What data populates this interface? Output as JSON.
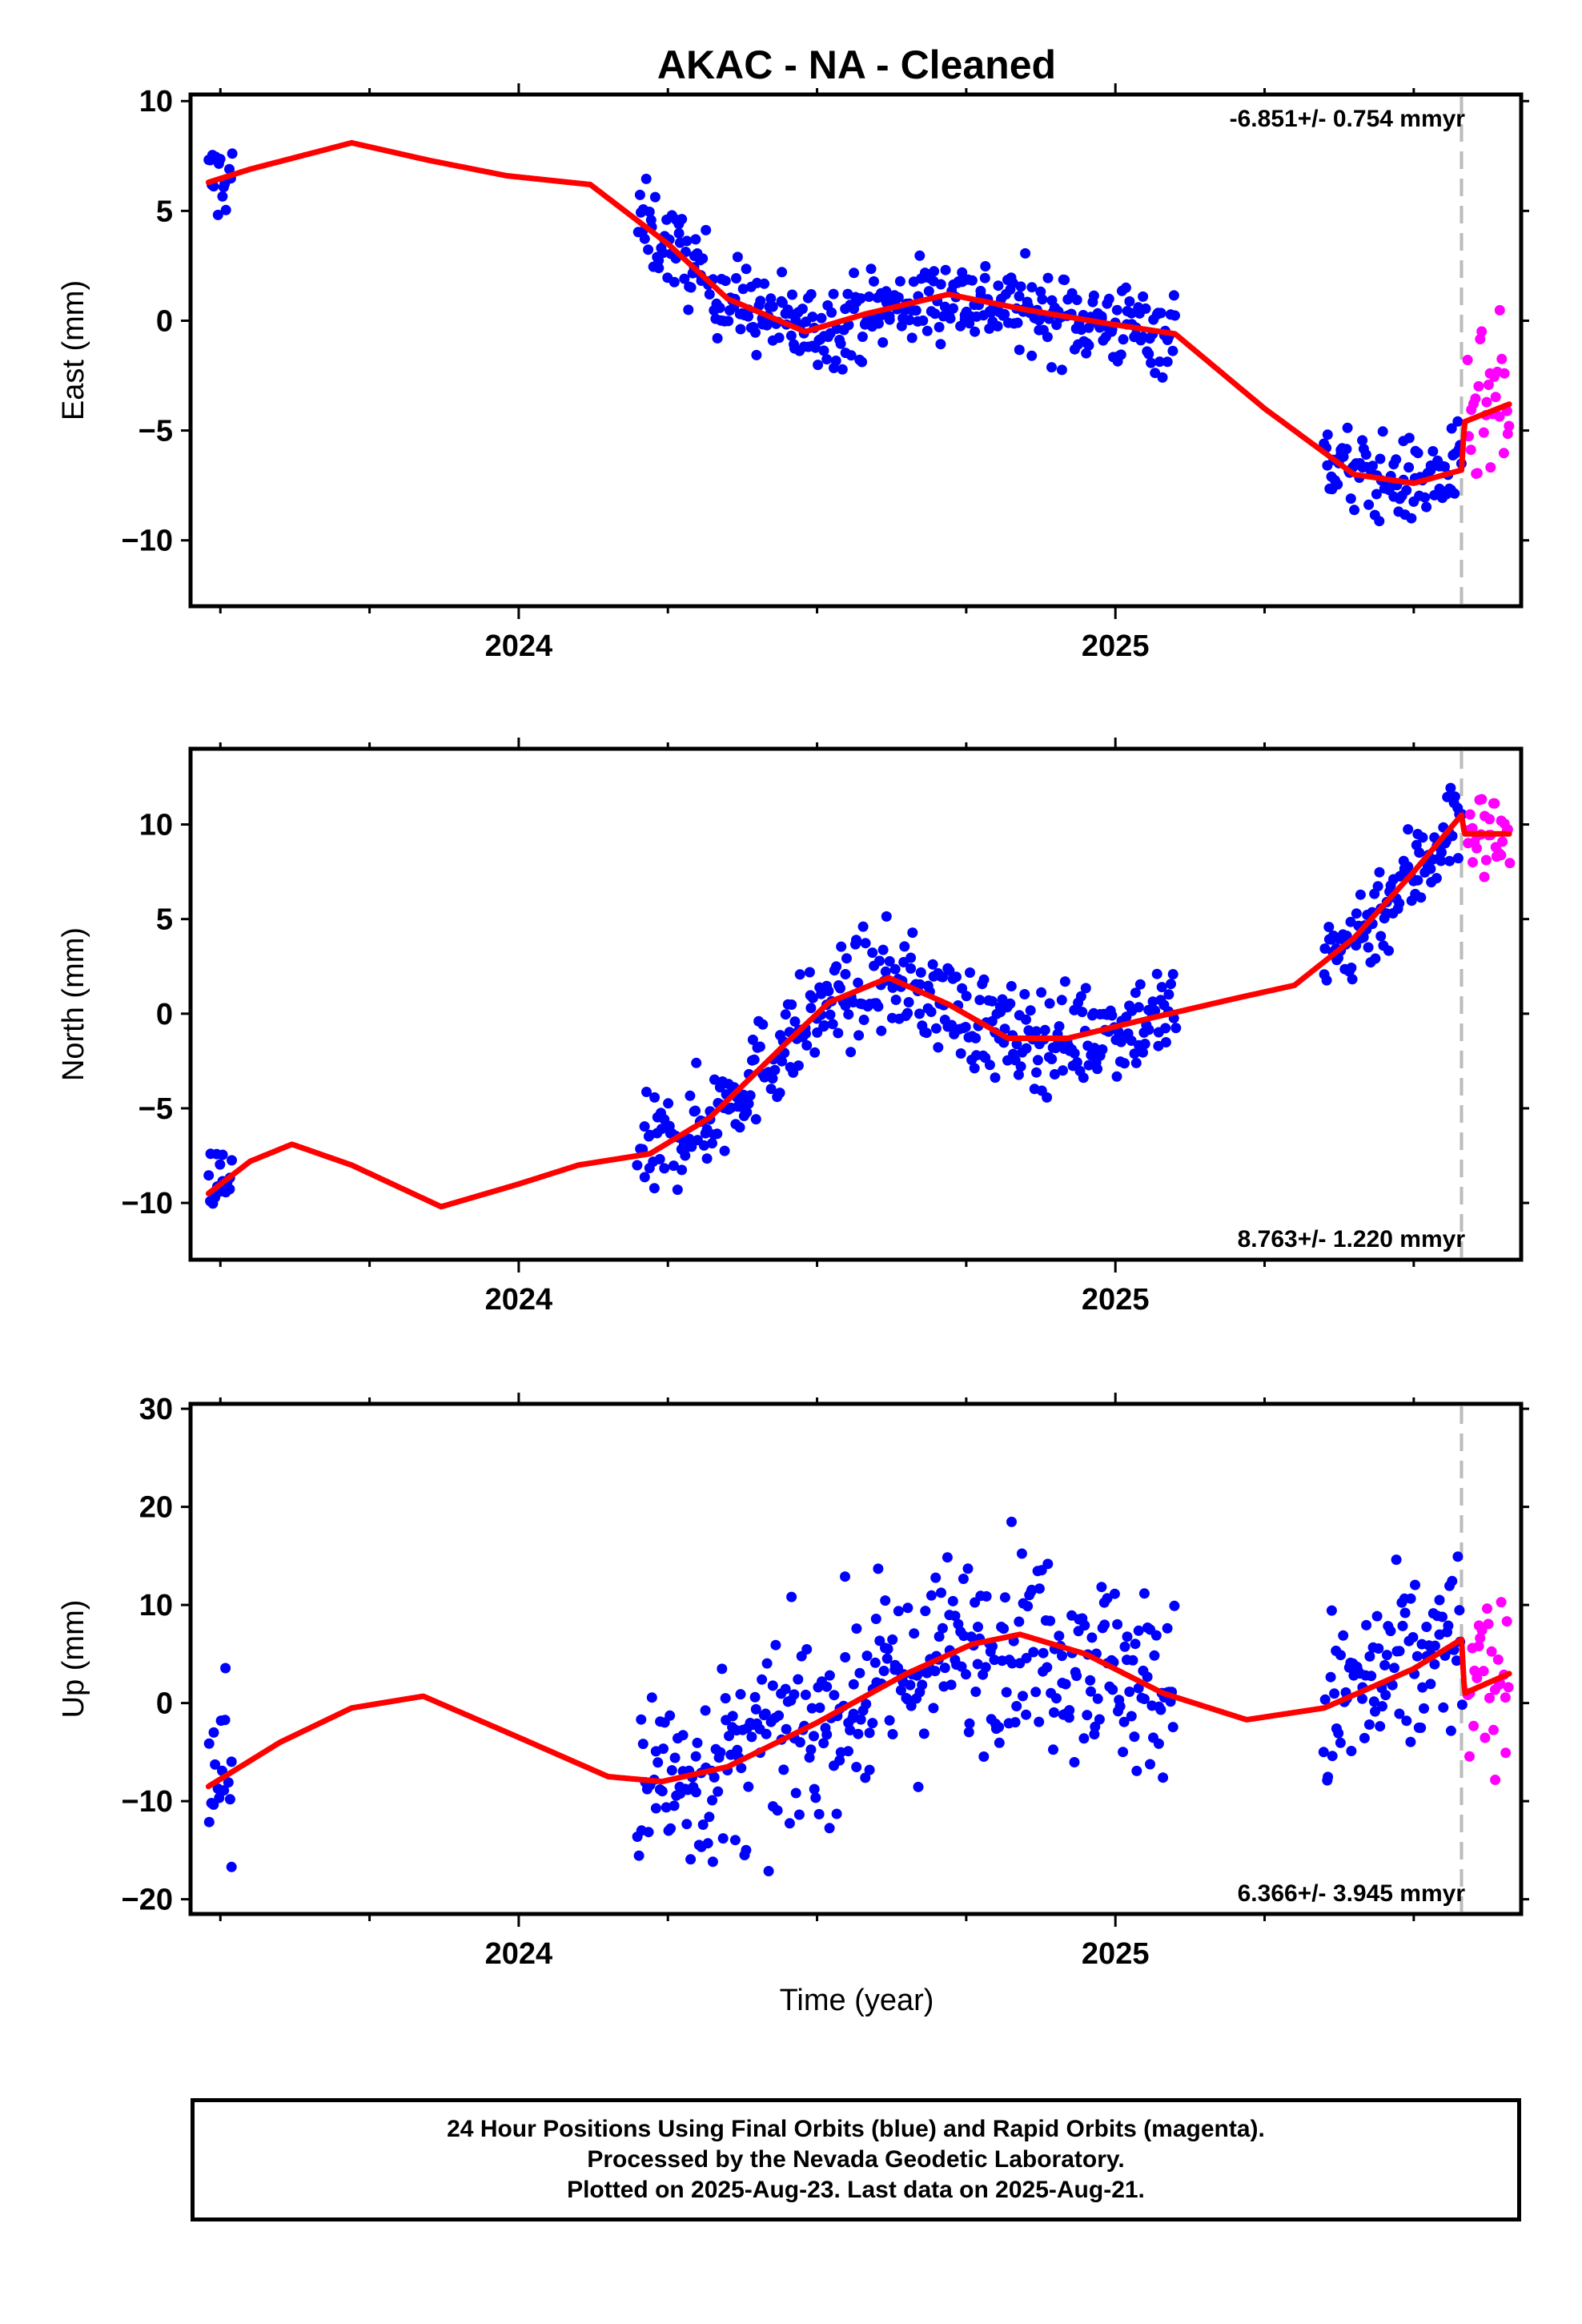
{
  "title": "AKAC  - NA - Cleaned",
  "colors": {
    "final": "#0000ff",
    "rapid": "#ff00ff",
    "model": "#ff0000",
    "marker_line": "#bbbbbb",
    "frame": "#000000"
  },
  "x_axis": {
    "label": "Time (year)",
    "range": [
      2023.45,
      2025.68
    ],
    "major_ticks": [
      2024,
      2025
    ],
    "major_tick_labels": [
      "2024",
      "2025"
    ],
    "minor_ticks": [
      2023.5,
      2023.75,
      2024.25,
      2024.5,
      2024.75,
      2025.25,
      2025.5
    ],
    "last_data_marker": 2025.58
  },
  "footer": {
    "line1": "24 Hour Positions Using Final Orbits (blue) and Rapid Orbits (magenta).",
    "line2": "Processed by the Nevada Geodetic Laboratory.",
    "line3": "Plotted on 2025-Aug-23. Last data on 2025-Aug-21."
  },
  "chart_data": [
    {
      "type": "scatter",
      "component": "East",
      "ylabel": "East (mm)",
      "ylim": [
        -13,
        10.3
      ],
      "yticks": [
        -10,
        -5,
        0,
        5,
        10
      ],
      "ytick_labels": [
        "−10",
        "−5",
        "0",
        "5",
        "10"
      ],
      "rate_text": "-6.851+/- 0.754 mmyr",
      "rate_position": "top-right",
      "series": [
        {
          "name": "Final Orbits",
          "color": "#0000ff",
          "segments": [
            [
              2023.48,
              2023.52,
              6.8
            ],
            [
              2024.2,
              2025.1,
              0.0
            ],
            [
              2025.35,
              2025.58,
              -7.5
            ]
          ],
          "spread": 1.6
        },
        {
          "name": "Rapid Orbits",
          "color": "#ff00ff",
          "segments": [
            [
              2025.59,
              2025.66,
              -3.5
            ]
          ],
          "spread": 3.0
        },
        {
          "name": "Model",
          "color": "#ff0000",
          "knots": [
            [
              2023.48,
              6.3
            ],
            [
              2023.55,
              6.9
            ],
            [
              2023.72,
              8.1
            ],
            [
              2023.85,
              7.3
            ],
            [
              2023.98,
              6.6
            ],
            [
              2024.12,
              6.2
            ],
            [
              2024.25,
              3.5
            ],
            [
              2024.35,
              1.0
            ],
            [
              2024.48,
              -0.5
            ],
            [
              2024.58,
              0.3
            ],
            [
              2024.72,
              1.2
            ],
            [
              2024.85,
              0.5
            ],
            [
              2024.98,
              -0.1
            ],
            [
              2025.1,
              -0.6
            ],
            [
              2025.25,
              -4.0
            ],
            [
              2025.4,
              -7.0
            ],
            [
              2025.5,
              -7.4
            ],
            [
              2025.58,
              -6.8
            ],
            [
              2025.585,
              -4.6
            ],
            [
              2025.66,
              -3.8
            ]
          ]
        }
      ]
    },
    {
      "type": "scatter",
      "component": "North",
      "ylabel": "North (mm)",
      "ylim": [
        -13,
        14
      ],
      "yticks": [
        -10,
        -5,
        0,
        5,
        10
      ],
      "ytick_labels": [
        "−10",
        "−5",
        "0",
        "5",
        "10"
      ],
      "rate_text": "8.763+/- 1.220 mmyr",
      "rate_position": "bottom-right",
      "series": [
        {
          "name": "Final Orbits",
          "color": "#0000ff",
          "segments": [
            [
              2023.48,
              2023.52,
              -9.5
            ],
            [
              2024.2,
              2025.1,
              -1.0
            ],
            [
              2025.35,
              2025.58,
              7.0
            ]
          ],
          "spread": 2.2
        },
        {
          "name": "Rapid Orbits",
          "color": "#ff00ff",
          "segments": [
            [
              2025.59,
              2025.66,
              9.5
            ]
          ],
          "spread": 1.8
        },
        {
          "name": "Model",
          "color": "#ff0000",
          "knots": [
            [
              2023.48,
              -9.5
            ],
            [
              2023.55,
              -7.8
            ],
            [
              2023.62,
              -6.9
            ],
            [
              2023.72,
              -8.0
            ],
            [
              2023.87,
              -10.2
            ],
            [
              2024.0,
              -9.0
            ],
            [
              2024.1,
              -8.0
            ],
            [
              2024.22,
              -7.4
            ],
            [
              2024.32,
              -5.5
            ],
            [
              2024.45,
              -1.5
            ],
            [
              2024.52,
              0.6
            ],
            [
              2024.62,
              1.9
            ],
            [
              2024.72,
              0.5
            ],
            [
              2024.82,
              -1.3
            ],
            [
              2024.92,
              -1.3
            ],
            [
              2025.05,
              -0.3
            ],
            [
              2025.2,
              0.8
            ],
            [
              2025.3,
              1.5
            ],
            [
              2025.4,
              4.0
            ],
            [
              2025.5,
              7.5
            ],
            [
              2025.58,
              10.5
            ],
            [
              2025.585,
              9.5
            ],
            [
              2025.66,
              9.5
            ]
          ]
        }
      ]
    },
    {
      "type": "scatter",
      "component": "Up",
      "ylabel": "Up (mm)",
      "ylim": [
        -21.5,
        30.5
      ],
      "yticks": [
        -20,
        -10,
        0,
        10,
        20,
        30
      ],
      "ytick_labels": [
        "−20",
        "−10",
        "0",
        "10",
        "20",
        "30"
      ],
      "rate_text": "6.366+/- 3.945 mmyr",
      "rate_position": "bottom-right",
      "series": [
        {
          "name": "Final Orbits",
          "color": "#0000ff",
          "segments": [
            [
              2023.48,
              2023.52,
              -10.0
            ],
            [
              2024.2,
              2025.1,
              2.0
            ],
            [
              2025.35,
              2025.58,
              0.0
            ]
          ],
          "spread": 8.0
        },
        {
          "name": "Rapid Orbits",
          "color": "#ff00ff",
          "segments": [
            [
              2025.59,
              2025.66,
              3.0
            ]
          ],
          "spread": 6.5
        },
        {
          "name": "Model",
          "color": "#ff0000",
          "knots": [
            [
              2023.48,
              -8.5
            ],
            [
              2023.6,
              -4.0
            ],
            [
              2023.72,
              -0.5
            ],
            [
              2023.84,
              0.7
            ],
            [
              2024.0,
              -3.5
            ],
            [
              2024.15,
              -7.5
            ],
            [
              2024.24,
              -8.0
            ],
            [
              2024.35,
              -6.5
            ],
            [
              2024.5,
              -2.0
            ],
            [
              2024.65,
              3.0
            ],
            [
              2024.76,
              6.0
            ],
            [
              2024.84,
              7.0
            ],
            [
              2024.95,
              5.0
            ],
            [
              2025.08,
              1.0
            ],
            [
              2025.22,
              -1.7
            ],
            [
              2025.35,
              -0.5
            ],
            [
              2025.5,
              3.5
            ],
            [
              2025.58,
              6.5
            ],
            [
              2025.585,
              1.0
            ],
            [
              2025.66,
              3.0
            ]
          ]
        }
      ]
    }
  ]
}
